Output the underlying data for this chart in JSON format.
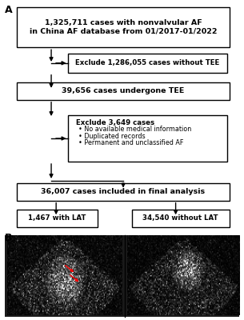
{
  "box1_text": "1,325,711 cases with nonvalvular AF\nin China AF database from 01/2017-01/2022",
  "box2_text": "Exclude 1,286,055 cases without TEE",
  "box3_text": "39,656 cases undergone TEE",
  "box4_title": "Exclude 3,649 cases",
  "box4_bullets": [
    "No available medical information",
    "Duplicated records",
    "Permanent and unclassified AF"
  ],
  "box5_text": "36,007 cases included in final analysis",
  "box6_text": "1,467 with LAT",
  "box7_text": "34,540 without LAT",
  "label_A": "A",
  "label_B": "B",
  "bg_color": "#ffffff",
  "box_edge_color": "#000000",
  "box_face_color": "#ffffff",
  "text_color": "#000000",
  "arrow_color": "#000000",
  "fontsize_main": 6.8,
  "fontsize_small": 6.2,
  "fontsize_bullet": 5.8,
  "fontsize_label": 9,
  "lw": 1.0
}
